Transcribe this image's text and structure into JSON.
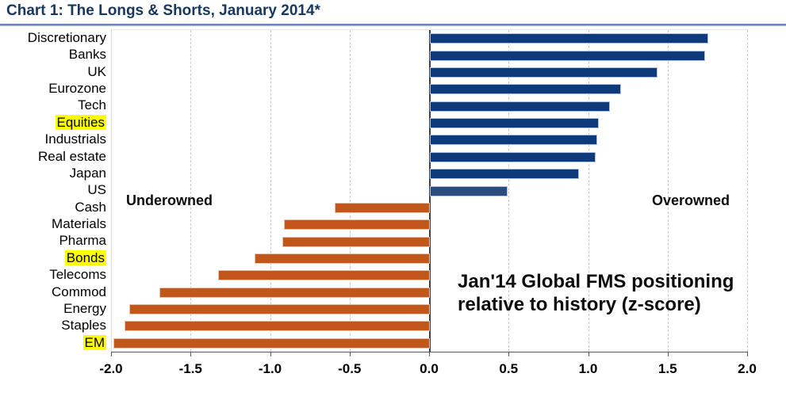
{
  "title": "Chart 1: The Longs & Shorts, January 2014*",
  "chart_data": {
    "type": "bar",
    "orientation": "horizontal",
    "title": "Chart 1: The Longs & Shorts, January 2014*",
    "xlabel": "",
    "ylabel": "",
    "xlim": [
      -2.0,
      2.0
    ],
    "x_ticks": [
      "-2.0",
      "-1.5",
      "-1.0",
      "-0.5",
      "0.0",
      "0.5",
      "1.0",
      "1.5",
      "2.0"
    ],
    "grid": "vertical-dashed",
    "rows": [
      {
        "label": "Discretionary",
        "value": 1.75,
        "highlighted": false
      },
      {
        "label": "Banks",
        "value": 1.73,
        "highlighted": false
      },
      {
        "label": "UK",
        "value": 1.43,
        "highlighted": false
      },
      {
        "label": "Eurozone",
        "value": 1.2,
        "highlighted": false
      },
      {
        "label": "Tech",
        "value": 1.13,
        "highlighted": false
      },
      {
        "label": "Equities",
        "value": 1.06,
        "highlighted": true
      },
      {
        "label": "Industrials",
        "value": 1.05,
        "highlighted": false
      },
      {
        "label": "Real estate",
        "value": 1.04,
        "highlighted": false
      },
      {
        "label": "Japan",
        "value": 0.94,
        "highlighted": false
      },
      {
        "label": "US",
        "value": 0.49,
        "highlighted": false,
        "color": "#2A4C7E"
      },
      {
        "label": "Cash",
        "value": -0.6,
        "highlighted": false
      },
      {
        "label": "Materials",
        "value": -0.92,
        "highlighted": false
      },
      {
        "label": "Pharma",
        "value": -0.93,
        "highlighted": false
      },
      {
        "label": "Bonds",
        "value": -1.1,
        "highlighted": true
      },
      {
        "label": "Telecoms",
        "value": -1.33,
        "highlighted": false
      },
      {
        "label": "Commod",
        "value": -1.7,
        "highlighted": false
      },
      {
        "label": "Energy",
        "value": -1.89,
        "highlighted": false
      },
      {
        "label": "Staples",
        "value": -1.92,
        "highlighted": false
      },
      {
        "label": "EM",
        "value": -1.99,
        "highlighted": true
      }
    ],
    "annotations": {
      "underowned": "Underowned",
      "overowned": "Overowned",
      "note_line1": "Jan'14 Global FMS positioning",
      "note_line2": "relative to history (z-score)"
    },
    "colors": {
      "positive_bar": "#0D3A7A",
      "negative_bar": "#C2571C",
      "highlight": "#FFFF00",
      "title_text": "#17375E",
      "zero_line": "#3F3F3F"
    },
    "legend": "none"
  }
}
